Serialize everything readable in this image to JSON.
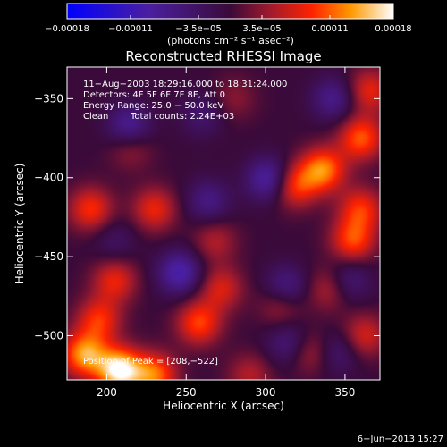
{
  "chart_data": {
    "type": "heatmap",
    "title": "Reconstructed RHESSI Image",
    "xlabel": "Heliocentric X (arcsec)",
    "ylabel": "Heliocentric Y (arcsec)",
    "xlim": [
      175,
      372
    ],
    "ylim": [
      -528,
      -330
    ],
    "x_ticks": [
      200,
      250,
      300,
      350
    ],
    "y_ticks": [
      -350,
      -400,
      -450,
      -500
    ],
    "x_tick_labels": [
      "200",
      "250",
      "300",
      "350"
    ],
    "y_tick_labels": [
      "−350",
      "−400",
      "−450",
      "−500"
    ],
    "colorbar": {
      "range": [
        -0.00018,
        0.00018
      ],
      "ticks": [
        -0.00018,
        -0.00011,
        -3.5e-05,
        3.5e-05,
        0.00011,
        0.00018
      ],
      "tick_labels": [
        "−0.00018",
        "−0.00011",
        "−3.5e−05",
        "3.5e−05",
        "0.00011",
        "0.00018"
      ],
      "unit_label": "(photons cm⁻² s⁻¹ asec⁻²)"
    },
    "annotations": [
      "11−Aug−2003 18:29:16.000 to 18:31:24.000",
      "Detectors: 4F 5F 6F 7F 8F, Att 0",
      "Energy Range: 25.0 − 50.0 keV",
      "Clean",
      "Total counts: 2.24E+03"
    ],
    "peak_label": "Position of Peak = [208,−522]",
    "peak": [
      208,
      -522
    ],
    "date_stamp": "6−Jun−2013 15:27",
    "grid": false,
    "blobs": [
      {
        "x": 208,
        "y": -522,
        "v": 1.0
      },
      {
        "x": 230,
        "y": -525,
        "v": 0.65
      },
      {
        "x": 186,
        "y": -512,
        "v": 0.75
      },
      {
        "x": 195,
        "y": -490,
        "v": 0.5
      },
      {
        "x": 258,
        "y": -492,
        "v": 0.55
      },
      {
        "x": 272,
        "y": -470,
        "v": 0.4
      },
      {
        "x": 205,
        "y": -465,
        "v": 0.45
      },
      {
        "x": 190,
        "y": -420,
        "v": 0.5
      },
      {
        "x": 230,
        "y": -420,
        "v": 0.45
      },
      {
        "x": 268,
        "y": -440,
        "v": 0.3
      },
      {
        "x": 318,
        "y": -405,
        "v": 0.55
      },
      {
        "x": 336,
        "y": -395,
        "v": 0.7
      },
      {
        "x": 360,
        "y": -375,
        "v": 0.6
      },
      {
        "x": 365,
        "y": -345,
        "v": 0.45
      },
      {
        "x": 355,
        "y": -440,
        "v": 0.55
      },
      {
        "x": 360,
        "y": -420,
        "v": 0.5
      },
      {
        "x": 340,
        "y": -470,
        "v": 0.35
      },
      {
        "x": 310,
        "y": -480,
        "v": 0.35
      },
      {
        "x": 328,
        "y": -510,
        "v": 0.35
      },
      {
        "x": 362,
        "y": -500,
        "v": 0.4
      },
      {
        "x": 290,
        "y": -525,
        "v": 0.3
      },
      {
        "x": 215,
        "y": -380,
        "v": 0.3
      },
      {
        "x": 280,
        "y": -350,
        "v": 0.2
      },
      {
        "x": 214,
        "y": -368,
        "v": -0.5
      },
      {
        "x": 302,
        "y": -401,
        "v": -0.55
      },
      {
        "x": 246,
        "y": -460,
        "v": -0.55
      },
      {
        "x": 264,
        "y": -415,
        "v": -0.35
      },
      {
        "x": 313,
        "y": -470,
        "v": -0.45
      },
      {
        "x": 343,
        "y": -350,
        "v": -0.4
      },
      {
        "x": 352,
        "y": -465,
        "v": -0.35
      },
      {
        "x": 315,
        "y": -505,
        "v": -0.35
      },
      {
        "x": 345,
        "y": -510,
        "v": -0.3
      },
      {
        "x": 260,
        "y": -360,
        "v": -0.25
      },
      {
        "x": 205,
        "y": -440,
        "v": -0.2
      }
    ]
  }
}
